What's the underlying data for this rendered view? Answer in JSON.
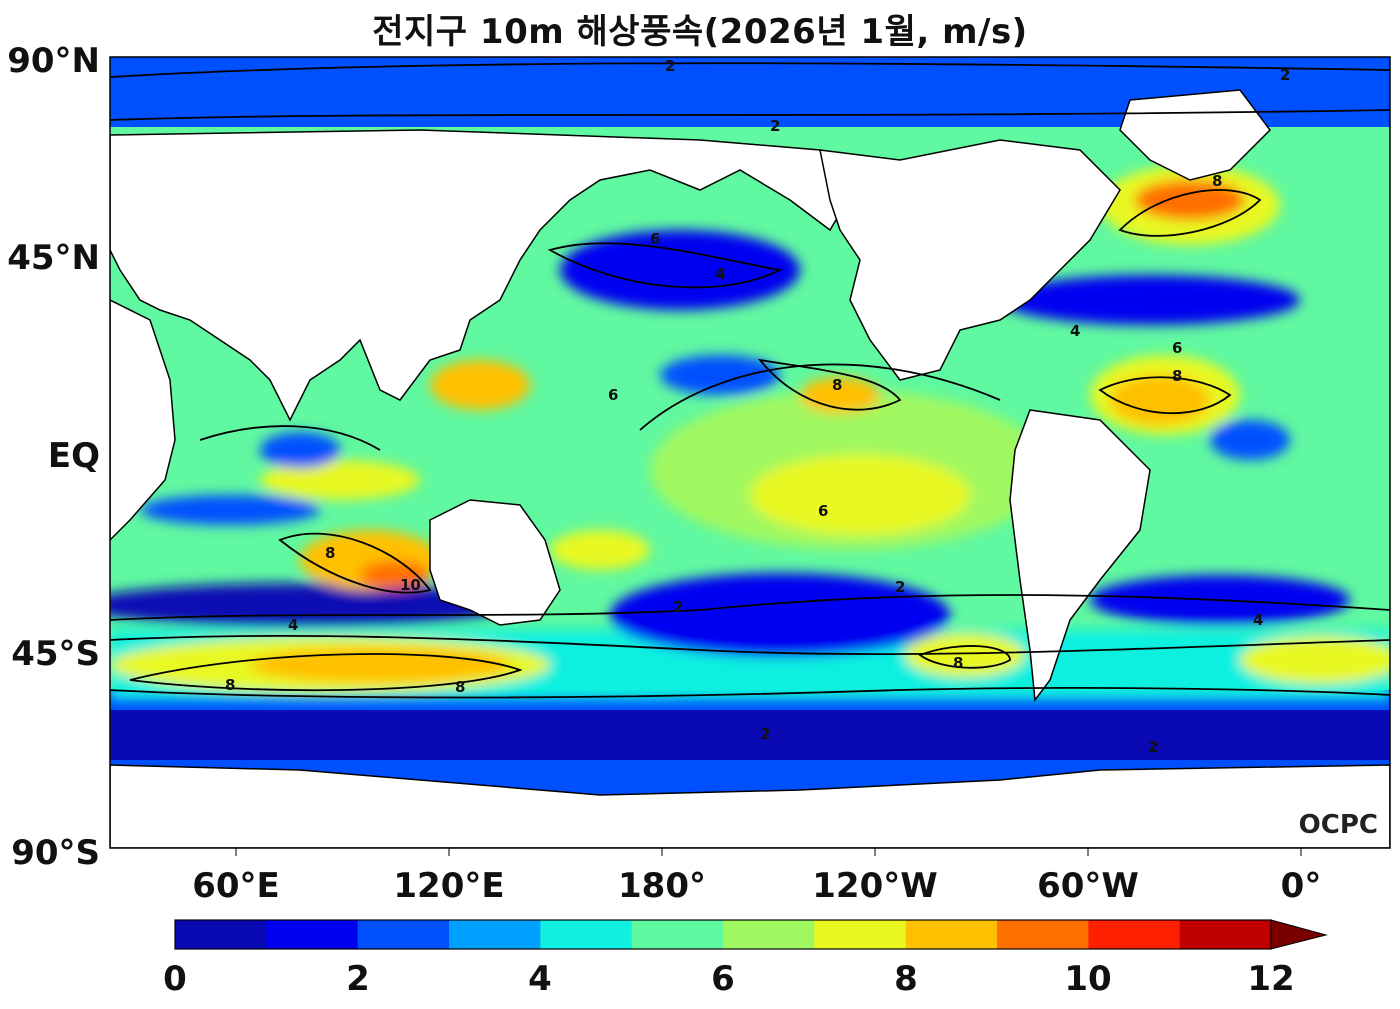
{
  "title": "전지구 10m 해상풍속(2026년 1월, m/s)",
  "watermark": "OCPC",
  "lat_labels": [
    "90°N",
    "45°N",
    "EQ",
    "45°S",
    "90°S"
  ],
  "lon_labels": [
    "60°E",
    "120°E",
    "180°",
    "120°W",
    "60°W",
    "0°"
  ],
  "colorbar": {
    "ticks": [
      "0",
      "2",
      "4",
      "6",
      "8",
      "10",
      "12"
    ],
    "colors": [
      "#0a0ab4",
      "#0000f0",
      "#0050ff",
      "#00a0ff",
      "#10f0e0",
      "#60f8a0",
      "#a0f860",
      "#e8f820",
      "#ffc000",
      "#ff7000",
      "#ff2000",
      "#c00000"
    ],
    "extend_color": "#7a0000"
  },
  "contour_labels": [
    "2",
    "4",
    "6",
    "8",
    "10"
  ],
  "colors": {
    "land": "#ffffff",
    "coast": "#000000",
    "contour": "#000000"
  }
}
